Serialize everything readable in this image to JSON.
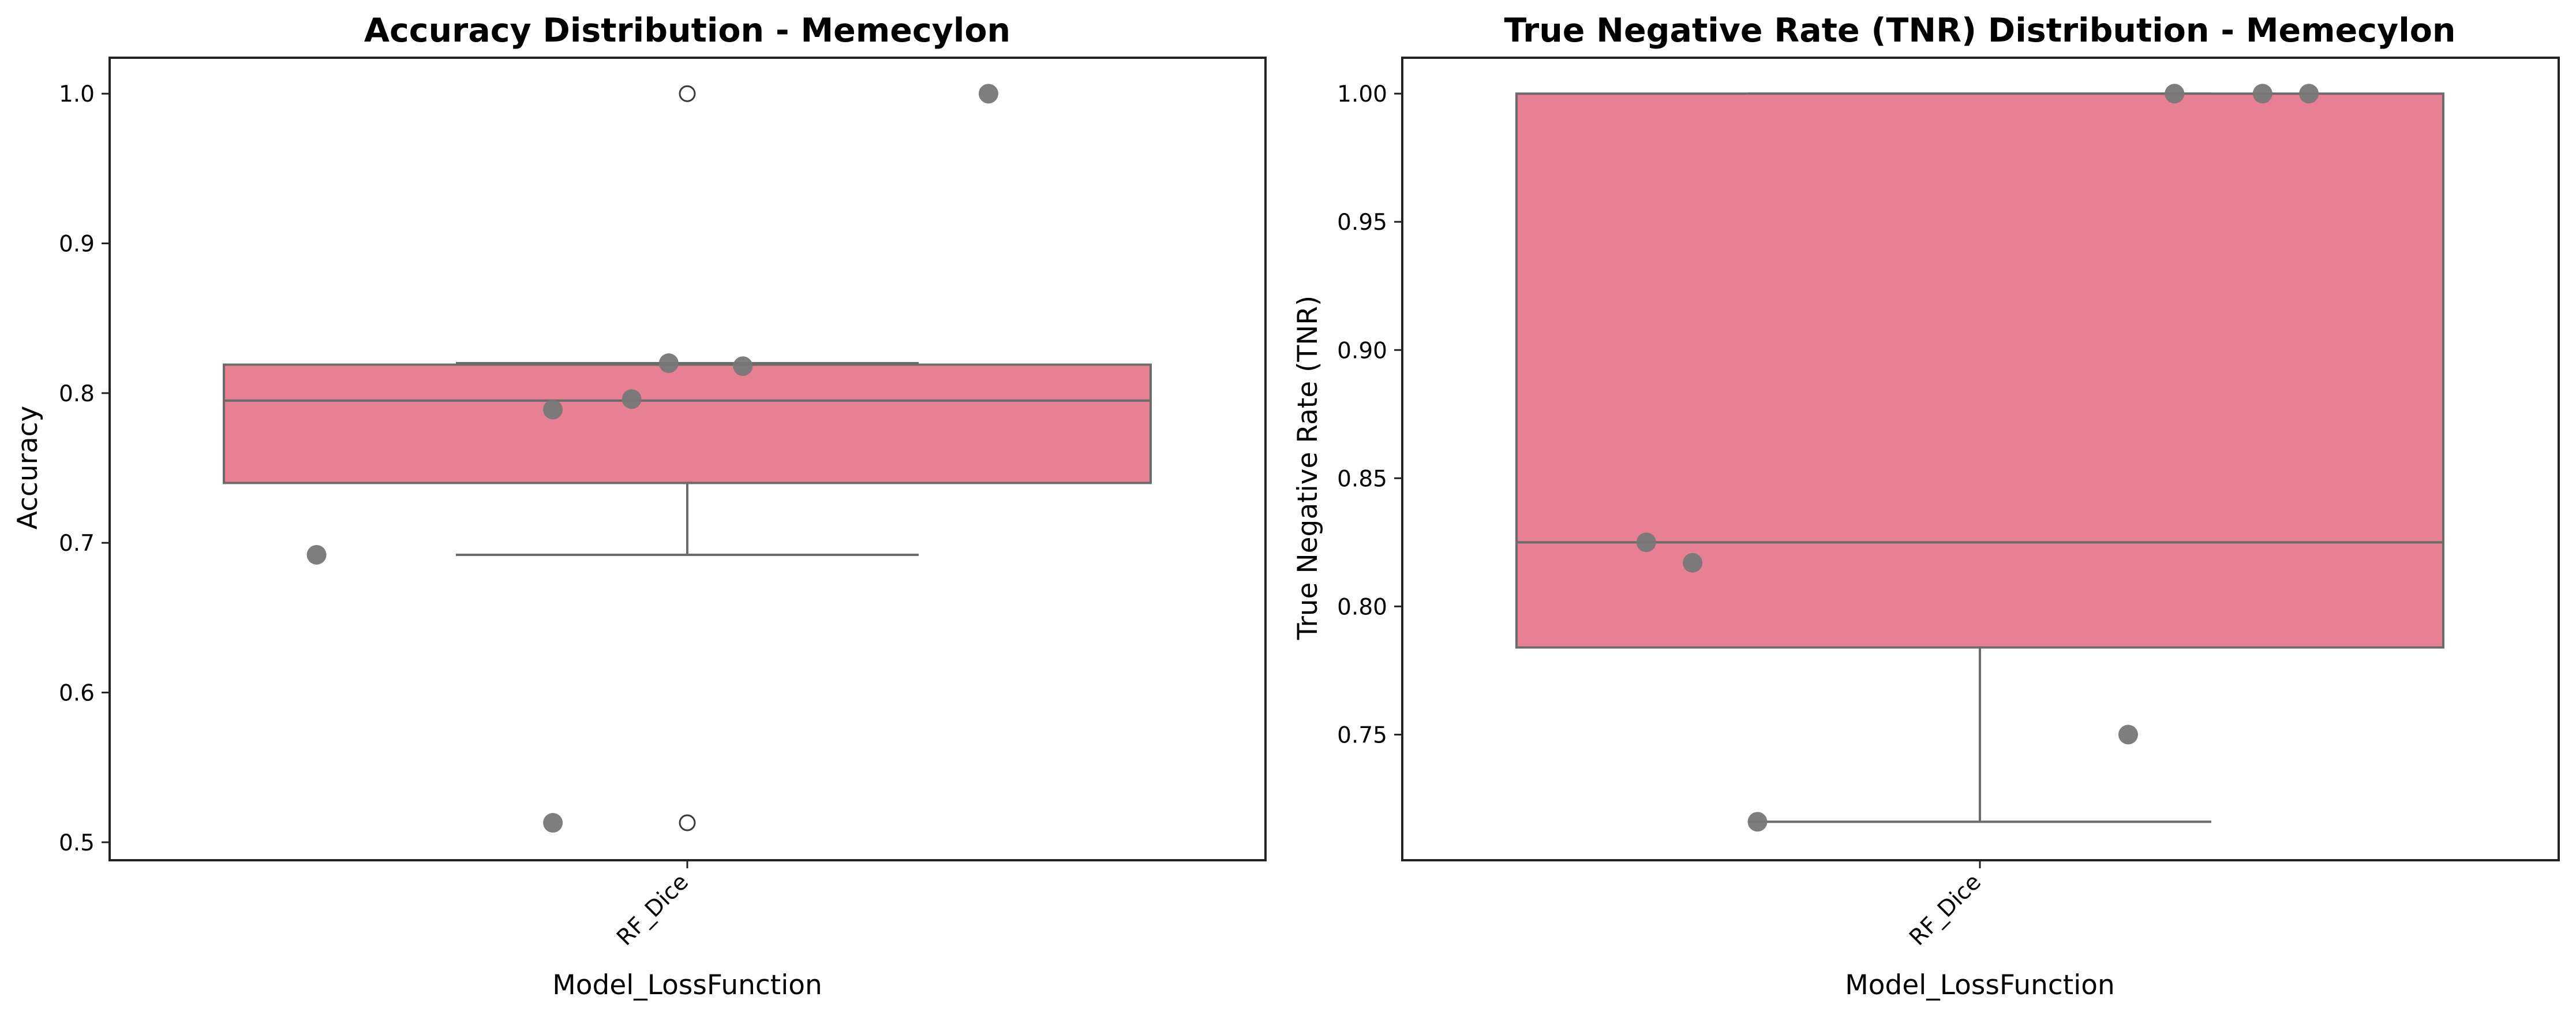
{
  "chart_data": [
    {
      "type": "box",
      "title": "Accuracy Distribution - Memecylon",
      "xlabel": "Model_LossFunction",
      "ylabel": "Accuracy",
      "categories": [
        "RF_Dice"
      ],
      "ylim": [
        0.488,
        1.024
      ],
      "yticks": [
        0.5,
        0.6,
        0.7,
        0.8,
        0.9,
        1.0
      ],
      "ytick_labels": [
        "0.5",
        "0.6",
        "0.7",
        "0.8",
        "0.9",
        "1.0"
      ],
      "grid": false,
      "legend": "none",
      "box": {
        "q1": 0.74,
        "median": 0.795,
        "q3": 0.819,
        "whisker_low": 0.692,
        "whisker_high": 0.82
      },
      "outliers": [
        0.513,
        1.0
      ],
      "points": [
        {
          "x": 0.65,
          "y": 1.0
        },
        {
          "x": -0.04,
          "y": 0.82
        },
        {
          "x": 0.12,
          "y": 0.818
        },
        {
          "x": -0.12,
          "y": 0.796
        },
        {
          "x": -0.29,
          "y": 0.789
        },
        {
          "x": -0.8,
          "y": 0.692
        },
        {
          "x": -0.29,
          "y": 0.513
        }
      ],
      "colors": {
        "box": "#e88093",
        "edge": "#6b6b6b",
        "point": "#777777"
      }
    },
    {
      "type": "box",
      "title": "True Negative Rate (TNR) Distribution - Memecylon",
      "xlabel": "Model_LossFunction",
      "ylabel": "True Negative Rate (TNR)",
      "categories": [
        "RF_Dice"
      ],
      "ylim": [
        0.701,
        1.014
      ],
      "yticks": [
        0.75,
        0.8,
        0.85,
        0.9,
        0.95,
        1.0
      ],
      "ytick_labels": [
        "0.75",
        "0.80",
        "0.85",
        "0.90",
        "0.95",
        "1.00"
      ],
      "grid": false,
      "legend": "none",
      "box": {
        "q1": 0.784,
        "median": 0.825,
        "q3": 1.0,
        "whisker_low": 0.716,
        "whisker_high": 1.0
      },
      "outliers": [],
      "points": [
        {
          "x": 0.42,
          "y": 1.0
        },
        {
          "x": 0.61,
          "y": 1.0
        },
        {
          "x": 0.71,
          "y": 1.0
        },
        {
          "x": -0.72,
          "y": 0.825
        },
        {
          "x": -0.62,
          "y": 0.817
        },
        {
          "x": 0.32,
          "y": 0.75
        },
        {
          "x": -0.48,
          "y": 0.716
        }
      ],
      "colors": {
        "box": "#e88093",
        "edge": "#6b6b6b",
        "point": "#777777"
      }
    }
  ]
}
